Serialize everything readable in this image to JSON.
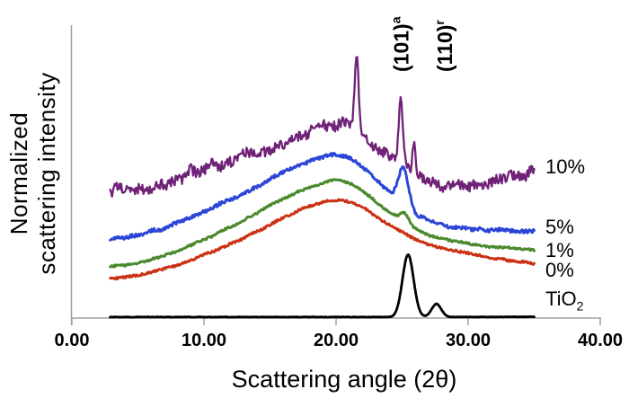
{
  "chart_data": {
    "type": "line",
    "title": "",
    "xlabel": "Scattering angle (2θ)",
    "ylabel": "Normalized scattering intensity",
    "ylabel_lines": [
      "Normalized",
      "scattering intensity"
    ],
    "x_axis": {
      "min": 0,
      "max": 40,
      "ticks": [
        {
          "label": "0.00",
          "value": 0
        },
        {
          "label": "10.00",
          "value": 10
        },
        {
          "label": "20.00",
          "value": 20
        },
        {
          "label": "30.00",
          "value": 30
        },
        {
          "label": "40.00",
          "value": 40
        }
      ]
    },
    "y_axis": {
      "min": 0,
      "max": 1,
      "ticks": [],
      "note": "arbitrary units, no tick labels shown"
    },
    "grid": false,
    "legend_position": "right-of-curves",
    "curve_x_range": [
      2.9,
      35
    ],
    "axis_color": "#a0a0a0",
    "annotations": [
      {
        "text": "(101)",
        "sup": "a",
        "x_2theta": 25.0
      },
      {
        "text": "(110)",
        "sup": "r",
        "x_2theta": 28.3
      }
    ],
    "series": [
      {
        "name": "TiO2",
        "label": {
          "text": "TiO",
          "sub": "2"
        },
        "label_u": 0.067,
        "color": "#000000",
        "line_width": 2.8,
        "noise_hi": 0.0008,
        "noise_lo": 0.0,
        "points_n": 550,
        "backbone": [
          [
            2.9,
            0.005
          ],
          [
            20,
            0.005
          ],
          [
            30,
            0.005
          ],
          [
            35,
            0.006
          ]
        ],
        "peaks": [
          {
            "c": 25.45,
            "h": 0.213,
            "w": 0.42
          },
          {
            "c": 27.6,
            "h": 0.045,
            "w": 0.36
          }
        ]
      },
      {
        "name": "0%",
        "label": {
          "text": "0%"
        },
        "label_u": 0.163,
        "color": "#cc3114",
        "line_width": 2.9,
        "noise_hi": 0.0035,
        "noise_lo": 0.002,
        "points_n": 520,
        "backbone": [
          [
            2.9,
            0.135
          ],
          [
            5,
            0.148
          ],
          [
            7,
            0.17
          ],
          [
            9,
            0.2
          ],
          [
            11,
            0.235
          ],
          [
            13,
            0.275
          ],
          [
            15,
            0.32
          ],
          [
            17,
            0.365
          ],
          [
            19,
            0.398
          ],
          [
            20,
            0.405
          ],
          [
            21,
            0.398
          ],
          [
            22,
            0.378
          ],
          [
            23,
            0.35
          ],
          [
            24,
            0.32
          ],
          [
            25,
            0.295
          ],
          [
            26,
            0.27
          ],
          [
            27,
            0.252
          ],
          [
            28.5,
            0.235
          ],
          [
            30,
            0.222
          ],
          [
            32,
            0.206
          ],
          [
            35,
            0.187
          ]
        ],
        "peaks": []
      },
      {
        "name": "1%",
        "label": {
          "text": "1%"
        },
        "label_u": 0.233,
        "color": "#4a8a2d",
        "line_width": 2.9,
        "noise_hi": 0.0035,
        "noise_lo": 0.002,
        "points_n": 520,
        "backbone": [
          [
            2.9,
            0.175
          ],
          [
            5,
            0.19
          ],
          [
            7,
            0.215
          ],
          [
            9,
            0.25
          ],
          [
            11,
            0.29
          ],
          [
            13,
            0.335
          ],
          [
            15,
            0.385
          ],
          [
            17,
            0.43
          ],
          [
            19,
            0.462
          ],
          [
            20,
            0.472
          ],
          [
            21,
            0.462
          ],
          [
            22,
            0.435
          ],
          [
            23,
            0.4
          ],
          [
            24,
            0.365
          ],
          [
            25,
            0.335
          ],
          [
            26,
            0.305
          ],
          [
            27,
            0.285
          ],
          [
            28.5,
            0.268
          ],
          [
            30,
            0.255
          ],
          [
            32,
            0.245
          ],
          [
            35,
            0.233
          ]
        ],
        "peaks": [
          {
            "c": 25.2,
            "h": 0.032,
            "w": 0.3
          }
        ]
      },
      {
        "name": "5%",
        "label": {
          "text": "5%"
        },
        "label_u": 0.31,
        "color": "#2b46d7",
        "line_width": 2.9,
        "noise_hi": 0.006,
        "noise_lo": 0.004,
        "points_n": 520,
        "backbone": [
          [
            2.9,
            0.273
          ],
          [
            5,
            0.285
          ],
          [
            7,
            0.31
          ],
          [
            9,
            0.345
          ],
          [
            11,
            0.385
          ],
          [
            13,
            0.43
          ],
          [
            15,
            0.475
          ],
          [
            17,
            0.52
          ],
          [
            19,
            0.552
          ],
          [
            20,
            0.558
          ],
          [
            21,
            0.548
          ],
          [
            22,
            0.52
          ],
          [
            23,
            0.48
          ],
          [
            24,
            0.435
          ],
          [
            25,
            0.4
          ],
          [
            26,
            0.358
          ],
          [
            27,
            0.335
          ],
          [
            28.5,
            0.315
          ],
          [
            30,
            0.307
          ],
          [
            32,
            0.302
          ],
          [
            35,
            0.298
          ]
        ],
        "peaks": [
          {
            "c": 25.1,
            "h": 0.115,
            "w": 0.38
          }
        ]
      },
      {
        "name": "10%",
        "label": {
          "text": "10%"
        },
        "label_u": 0.518,
        "color": "#6f2277",
        "line_width": 2.3,
        "noise_hi": 0.018,
        "noise_lo": 0.016,
        "points_n": 460,
        "backbone": [
          [
            2.9,
            0.436
          ],
          [
            5,
            0.447
          ],
          [
            7,
            0.465
          ],
          [
            9,
            0.5
          ],
          [
            11,
            0.525
          ],
          [
            13,
            0.55
          ],
          [
            15,
            0.58
          ],
          [
            17,
            0.615
          ],
          [
            18.5,
            0.645
          ],
          [
            19.5,
            0.66
          ],
          [
            20.5,
            0.655
          ],
          [
            21.5,
            0.645
          ],
          [
            22.5,
            0.6
          ],
          [
            23.5,
            0.565
          ],
          [
            24.5,
            0.535
          ],
          [
            25.5,
            0.51
          ],
          [
            26.5,
            0.49
          ],
          [
            28,
            0.46
          ],
          [
            30,
            0.455
          ],
          [
            32,
            0.465
          ],
          [
            35,
            0.5
          ]
        ],
        "peaks": [
          {
            "c": 21.55,
            "h": 0.26,
            "w": 0.15
          },
          {
            "c": 24.9,
            "h": 0.24,
            "w": 0.16
          },
          {
            "c": 25.9,
            "h": 0.1,
            "w": 0.09
          }
        ]
      }
    ]
  }
}
